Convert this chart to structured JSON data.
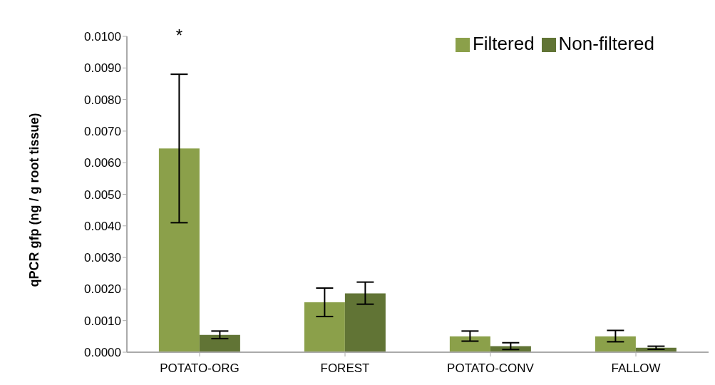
{
  "chart_data": {
    "type": "bar",
    "ylabel": "qPCR gfp (ng / g root tissue)",
    "categories": [
      "POTATO-ORG",
      "FOREST",
      "POTATO-CONV",
      "FALLOW"
    ],
    "series": [
      {
        "name": "Filtered",
        "color": "#8ba04a",
        "values": [
          0.00645,
          0.00158,
          0.0005,
          0.0005
        ],
        "errors": [
          [
            0.0041,
            0.0088
          ],
          [
            0.00113,
            0.00203
          ],
          [
            0.00035,
            0.00067
          ],
          [
            0.00033,
            0.00069
          ]
        ]
      },
      {
        "name": "Non-filtered",
        "color": "#617435",
        "values": [
          0.00055,
          0.00186,
          0.00019,
          0.00014
        ],
        "errors": [
          [
            0.00043,
            0.00067
          ],
          [
            0.00152,
            0.00222
          ],
          [
            8.5e-05,
            0.0003
          ],
          [
            9e-05,
            0.00019
          ]
        ]
      }
    ],
    "ylim": [
      0,
      0.01
    ],
    "yticks": [
      {
        "value": 0,
        "label": "0.0000"
      },
      {
        "value": 0.001,
        "label": "0.0010"
      },
      {
        "value": 0.002,
        "label": "0.0020"
      },
      {
        "value": 0.003,
        "label": "0.0030"
      },
      {
        "value": 0.004,
        "label": "0.0040"
      },
      {
        "value": 0.005,
        "label": "0.0050"
      },
      {
        "value": 0.006,
        "label": "0.0060"
      },
      {
        "value": 0.007,
        "label": "0.0070"
      },
      {
        "value": 0.008,
        "label": "0.0080"
      },
      {
        "value": 0.009,
        "label": "0.0090"
      },
      {
        "value": 0.01,
        "label": "0.0100"
      }
    ],
    "annotations": [
      "*"
    ],
    "grid": false,
    "legend": "top right"
  }
}
